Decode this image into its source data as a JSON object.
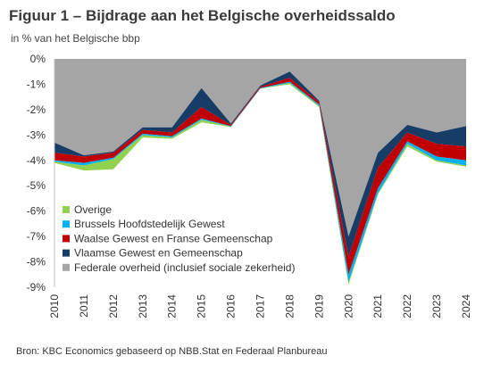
{
  "title": "Figuur 1 – Bijdrage aan het Belgische overheidssaldo",
  "subtitle": "in % van het Belgische bbp",
  "source": "Bron: KBC Economics gebaseerd op NBB.Stat en Federaal Planbureau",
  "colors": {
    "federal": "#a5a5a5",
    "flemish": "#173c66",
    "walloon": "#c00000",
    "brussels": "#00b0f0",
    "other": "#92d050"
  },
  "chart_data": {
    "type": "area",
    "stacked": true,
    "title": "Figuur 1 – Bijdrage aan het Belgische overheidssaldo",
    "subtitle": "in % van het Belgische bbp",
    "x": [
      "2010",
      "2011",
      "2012",
      "2013",
      "2014",
      "2015",
      "2016",
      "2017",
      "2018",
      "2019",
      "2020",
      "2021",
      "2022",
      "2023",
      "2024"
    ],
    "ylim": [
      -9,
      0
    ],
    "yticks": [
      "0%",
      "-1%",
      "-2%",
      "-3%",
      "-4%",
      "-5%",
      "-6%",
      "-7%",
      "-8%",
      "-9%"
    ],
    "legend_position": "inside-bottom-left",
    "series": [
      {
        "name": "Federale overheid (inclusief sociale zekerheid)",
        "color": "#a5a5a5",
        "values": [
          -3.3,
          -3.8,
          -3.65,
          -2.7,
          -2.7,
          -1.15,
          -2.55,
          -1.05,
          -0.5,
          -1.65,
          -7.0,
          -3.7,
          -2.6,
          -2.9,
          -2.65
        ]
      },
      {
        "name": "Vlaamse Gewest en Gemeenschap",
        "color": "#173c66",
        "values": [
          -0.4,
          -0.05,
          -0.05,
          -0.1,
          -0.2,
          -0.75,
          -0.05,
          -0.05,
          -0.25,
          -0.05,
          -0.8,
          -0.6,
          -0.3,
          -0.45,
          -0.8
        ]
      },
      {
        "name": "Waalse Gewest en Franse Gemeenschap",
        "color": "#c00000",
        "values": [
          -0.3,
          -0.25,
          -0.2,
          -0.15,
          -0.15,
          -0.45,
          -0.05,
          -0.05,
          -0.15,
          -0.1,
          -0.7,
          -0.8,
          -0.35,
          -0.5,
          -0.55
        ]
      },
      {
        "name": "Brussels Hoofdstedelijk Gewest",
        "color": "#00b0f0",
        "values": [
          -0.05,
          -0.1,
          -0.05,
          -0.05,
          -0.05,
          -0.05,
          -0.02,
          -0.02,
          -0.05,
          -0.05,
          -0.3,
          -0.2,
          -0.1,
          -0.15,
          -0.2
        ]
      },
      {
        "name": "Overige",
        "color": "#92d050",
        "values": [
          -0.05,
          -0.2,
          -0.4,
          -0.1,
          -0.05,
          -0.1,
          -0.02,
          0.0,
          -0.05,
          -0.05,
          -0.1,
          -0.05,
          -0.1,
          -0.05,
          -0.05
        ]
      }
    ],
    "legend_order": [
      "Overige",
      "Brussels Hoofdstedelijk Gewest",
      "Waalse Gewest en Franse Gemeenschap",
      "Vlaamse Gewest en Gemeenschap",
      "Federale overheid (inclusief sociale zekerheid)"
    ]
  }
}
